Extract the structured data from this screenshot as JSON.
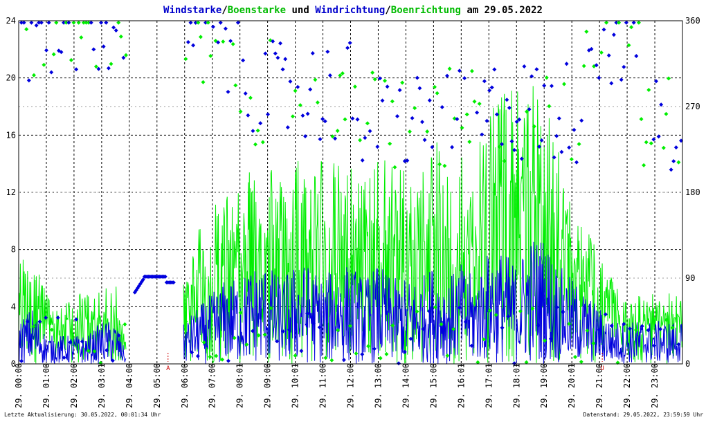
{
  "title": {
    "parts": [
      {
        "text": "Windstarke",
        "color": "#0000cc"
      },
      {
        "text": "/",
        "color": "#000000"
      },
      {
        "text": "Boenstarke",
        "color": "#00bb00"
      },
      {
        "text": " und ",
        "color": "#000000"
      },
      {
        "text": "Windrichtung",
        "color": "#0000cc"
      },
      {
        "text": "/",
        "color": "#000000"
      },
      {
        "text": "Boenrichtung",
        "color": "#00bb00"
      },
      {
        "text": " am 29.05.2022",
        "color": "#000000"
      }
    ]
  },
  "footer": {
    "left": "Letzte Aktualisierung: 30.05.2022, 00:01:34 Uhr",
    "right": "Datenstand: 29.05.2022, 23:59:59 Uhr"
  },
  "colors": {
    "wind": "#0000dd",
    "gust": "#00ee00",
    "grid": "#000000",
    "marker": "#cc0000"
  },
  "chart_data": {
    "type": "line",
    "x": {
      "ticks": [
        "29. 00:00",
        "29. 01:00",
        "29. 02:00",
        "29. 03:01",
        "29. 04:00",
        "29. 05:00",
        "29. 06:00",
        "29. 07:00",
        "29. 08:01",
        "29. 09:00",
        "29. 10:01",
        "29. 11:00",
        "29. 12:00",
        "29. 13:00",
        "29. 14:00",
        "29. 15:00",
        "29. 16:01",
        "29. 17:01",
        "29. 18:01",
        "29. 19:00",
        "29. 20:01",
        "29. 21:00",
        "29. 22:00",
        "29. 23:00"
      ],
      "range_hours": [
        0,
        24
      ]
    },
    "y_left": {
      "ticks": [
        0,
        4,
        8,
        12,
        16,
        20,
        24
      ],
      "range": [
        0,
        24
      ]
    },
    "y_right": {
      "ticks": [
        0,
        90,
        180,
        270,
        360
      ],
      "range": [
        0,
        360
      ]
    },
    "grid": true,
    "markers": [
      {
        "label": "A",
        "hour": 5.4
      },
      {
        "label": "U",
        "hour": 21.1
      }
    ],
    "series": [
      {
        "name": "Windstarke",
        "axis": "left",
        "style": "line",
        "envelope_hours": [
          0,
          0.5,
          1,
          1.5,
          2,
          2.5,
          3,
          3.5,
          4,
          4.8,
          5.5,
          6,
          6.5,
          7,
          7.5,
          8,
          8.5,
          9,
          9.5,
          10,
          10.5,
          11,
          11.5,
          12,
          12.5,
          13,
          13.5,
          14,
          14.5,
          15,
          15.5,
          16,
          16.5,
          17,
          17.5,
          18,
          18.5,
          19,
          19.5,
          20,
          20.5,
          21,
          21.5,
          22,
          22.5,
          23,
          23.5,
          24
        ],
        "envelope_values": [
          3,
          4,
          2,
          2,
          2,
          2,
          3,
          3,
          0,
          0,
          0,
          3,
          4,
          5,
          6,
          6,
          7,
          7,
          6,
          7,
          7,
          6,
          7,
          7,
          6,
          7,
          6,
          6,
          6,
          7,
          6,
          7,
          6,
          8,
          8,
          7,
          9,
          9,
          7,
          6,
          5,
          4,
          3,
          3,
          3,
          3,
          3,
          3
        ],
        "level_hours": [
          4.2,
          5.6
        ],
        "level_values": [
          6,
          5.6
        ]
      },
      {
        "name": "Boenstarke",
        "axis": "left",
        "style": "line",
        "envelope_hours": [
          0,
          0.5,
          1,
          1.5,
          2,
          2.5,
          3,
          3.5,
          4,
          4.8,
          5.5,
          6,
          6.5,
          7,
          7.5,
          8,
          8.5,
          9,
          9.5,
          10,
          10.5,
          11,
          11.5,
          12,
          12.5,
          13,
          13.5,
          14,
          14.5,
          15,
          15.5,
          16,
          16.5,
          17,
          17.5,
          18,
          18.5,
          19,
          19.5,
          20,
          20.5,
          21,
          21.5,
          22,
          22.5,
          23,
          23.5,
          24
        ],
        "envelope_values": [
          7,
          10,
          5,
          4,
          5,
          5,
          5,
          6,
          0,
          0,
          0,
          8,
          10,
          11,
          12,
          14,
          15,
          15,
          13,
          15,
          14,
          15,
          14,
          14,
          13,
          16,
          14,
          14,
          13,
          16,
          14,
          15,
          15,
          19,
          20,
          19,
          20,
          19,
          15,
          12,
          10,
          8,
          6,
          5,
          5,
          5,
          5,
          5
        ]
      },
      {
        "name": "Windrichtung",
        "axis": "right",
        "style": "points"
      },
      {
        "name": "Boenrichtung",
        "axis": "right",
        "style": "points"
      }
    ]
  }
}
